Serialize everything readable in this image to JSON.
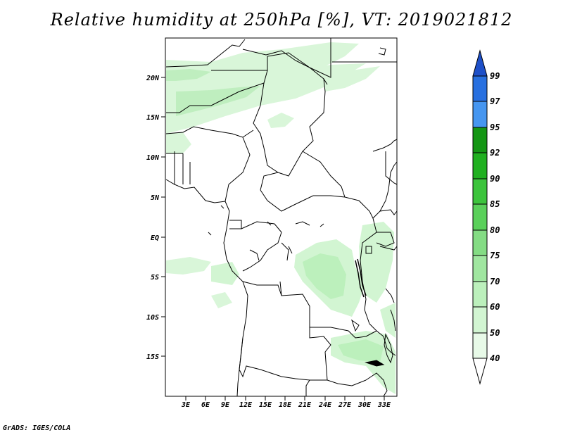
{
  "title": "Relative humidity at 250hPa [%], VT: 2019021812",
  "footer": "GrADS: IGES/COLA",
  "map": {
    "lat_labels": [
      "20N",
      "15N",
      "10N",
      "5N",
      "EQ",
      "5S",
      "10S",
      "15S"
    ],
    "lon_labels": [
      "3E",
      "6E",
      "9E",
      "12E",
      "15E",
      "18E",
      "21E",
      "24E",
      "27E",
      "30E",
      "33E"
    ]
  },
  "colorbar": {
    "levels": [
      "40",
      "50",
      "60",
      "70",
      "75",
      "80",
      "85",
      "90",
      "92",
      "95",
      "97",
      "99"
    ],
    "colors": [
      "#ffffff",
      "#e8fae8",
      "#d2f5d2",
      "#bcf0bc",
      "#a0e6a0",
      "#84dc84",
      "#5ad05a",
      "#3cc43c",
      "#20b020",
      "#149614",
      "#4696f0",
      "#2870e0",
      "#1e50c8"
    ]
  }
}
